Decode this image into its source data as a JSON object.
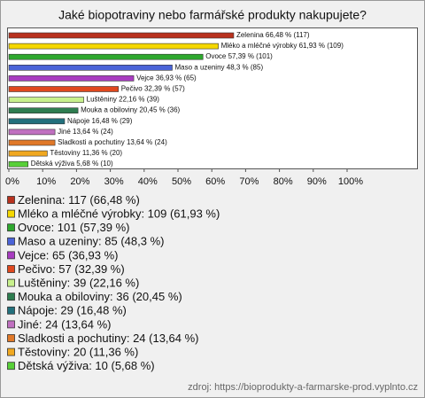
{
  "chart_data": {
    "type": "hbar",
    "title": "Jaké biopotraviny nebo farmářské produkty nakupujete?",
    "categories": [
      "Zelenina",
      "Mléko a mléčné výrobky",
      "Ovoce",
      "Maso a uzeniny",
      "Vejce",
      "Pečivo",
      "Luštěniny",
      "Mouka a obiloviny",
      "Nápoje",
      "Jiné",
      "Sladkosti a pochutiny",
      "Těstoviny",
      "Dětská výživa"
    ],
    "values": [
      66.48,
      61.93,
      57.39,
      48.3,
      36.93,
      32.39,
      22.16,
      20.45,
      16.48,
      13.64,
      13.64,
      11.36,
      5.68
    ],
    "value_labels": [
      "66,48 % (117)",
      "61,93 % (109)",
      "57,39 % (101)",
      "48,3 % (85)",
      "36,93 % (65)",
      "32,39 % (57)",
      "22,16 % (39)",
      "20,45 % (36)",
      "16,48 % (29)",
      "13,64 % (24)",
      "13,64 % (24)",
      "11,36 % (20)",
      "5,68 % (10)"
    ],
    "colors": [
      "#b8321e",
      "#f5d800",
      "#2ea82e",
      "#4a63d8",
      "#a83cc0",
      "#e0481e",
      "#c8f08c",
      "#2e7d50",
      "#22707c",
      "#c070c0",
      "#e07828",
      "#f0a820",
      "#58d038"
    ],
    "legend": [
      "Zelenina: 117 (66,48 %)",
      "Mléko a mléčné výrobky: 109 (61,93 %)",
      "Ovoce: 101 (57,39 %)",
      "Maso a uzeniny: 85 (48,3 %)",
      "Vejce: 65 (36,93 %)",
      "Pečivo: 57 (32,39 %)",
      "Luštěniny: 39 (22,16 %)",
      "Mouka a obiloviny: 36 (20,45 %)",
      "Nápoje: 29 (16,48 %)",
      "Jiné: 24 (13,64 %)",
      "Sladkosti a pochutiny: 24 (13,64 %)",
      "Těstoviny: 20 (11,36 %)",
      "Dětská výživa: 10 (5,68 %)"
    ],
    "xlim": [
      0,
      100
    ],
    "xticks": [
      {
        "value": 0,
        "label": "0%"
      },
      {
        "value": 10,
        "label": "10%"
      },
      {
        "value": 20,
        "label": "20%"
      },
      {
        "value": 30,
        "label": "30%"
      },
      {
        "value": 40,
        "label": "40%"
      },
      {
        "value": 50,
        "label": "50%"
      },
      {
        "value": 60,
        "label": "60%"
      },
      {
        "value": 70,
        "label": "70%"
      },
      {
        "value": 80,
        "label": "80%"
      },
      {
        "value": 90,
        "label": "90%"
      },
      {
        "value": 100,
        "label": "100%"
      }
    ],
    "source": "zdroj: https://bioprodukty-a-farmarske-prod.vyplnto.cz"
  }
}
